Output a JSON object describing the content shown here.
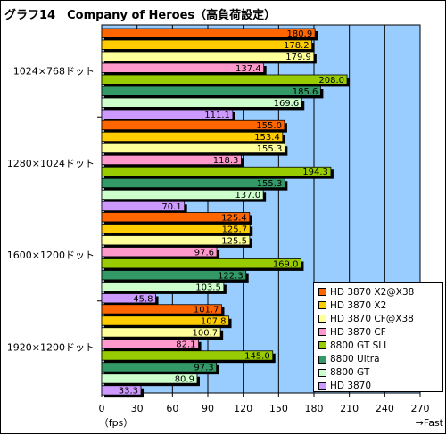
{
  "chart_data": {
    "type": "bar",
    "orientation": "horizontal",
    "title": "グラフ14　Company of Heroes（高負荷設定）",
    "categories": [
      "1024×768ドット",
      "1280×1024ドット",
      "1600×1200ドット",
      "1920×1200ドット"
    ],
    "series": [
      {
        "name": "HD 3870 X2@X38",
        "color": "#ff6600",
        "values": [
          180.9,
          155.0,
          125.4,
          101.7
        ]
      },
      {
        "name": "HD 3870 X2",
        "color": "#ffcc00",
        "values": [
          178.2,
          153.4,
          125.7,
          107.8
        ]
      },
      {
        "name": "HD 3870 CF@X38",
        "color": "#ffff99",
        "values": [
          179.9,
          155.3,
          125.5,
          100.7
        ]
      },
      {
        "name": "HD 3870 CF",
        "color": "#ff99cc",
        "values": [
          137.4,
          118.3,
          97.6,
          82.1
        ]
      },
      {
        "name": "8800 GT SLI",
        "color": "#99cc00",
        "values": [
          208.0,
          194.3,
          169.0,
          145.0
        ]
      },
      {
        "name": "8800 Ultra",
        "color": "#339966",
        "values": [
          185.6,
          155.3,
          122.3,
          97.3
        ]
      },
      {
        "name": "8800 GT",
        "color": "#ccffcc",
        "values": [
          169.6,
          137.0,
          103.5,
          80.9
        ]
      },
      {
        "name": "HD 3870",
        "color": "#cc99ff",
        "values": [
          111.1,
          70.1,
          45.8,
          33.3
        ]
      }
    ],
    "xlim": [
      0,
      270
    ],
    "xticks": [
      0,
      30,
      60,
      90,
      120,
      150,
      180,
      210,
      240,
      270
    ],
    "xlabel": "（fps）",
    "direction_label": "→Fast",
    "grid": true,
    "legend_position": "bottom-right",
    "plot_background": "#99ccff"
  }
}
